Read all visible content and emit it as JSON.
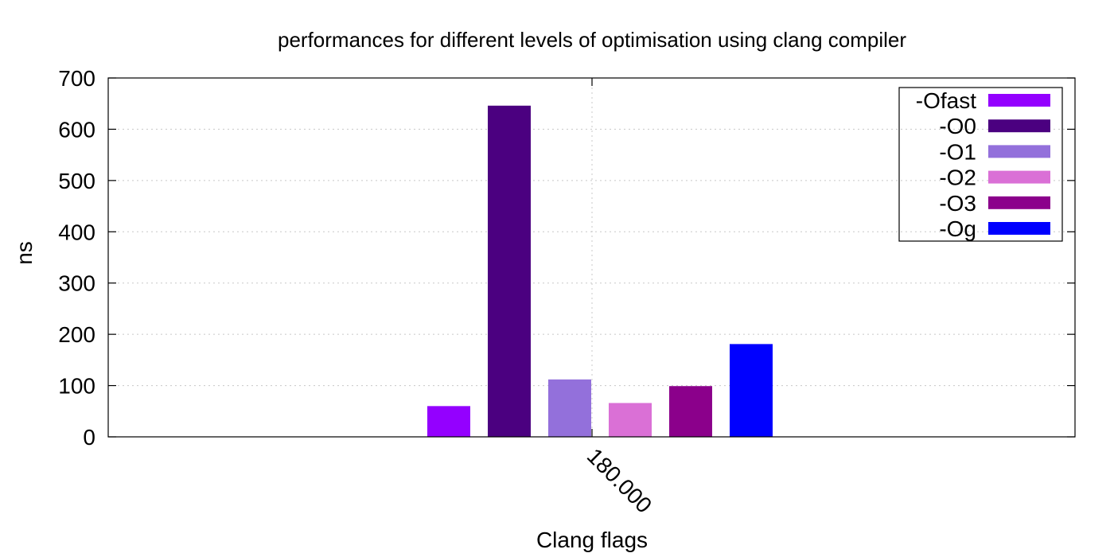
{
  "chart_data": {
    "type": "bar",
    "title": "performances for different levels of optimisation using clang compiler",
    "xlabel": "Clang flags",
    "ylabel": "ns",
    "categories": [
      "180.000"
    ],
    "ylim": [
      0,
      700
    ],
    "yticks": [
      0,
      100,
      200,
      300,
      400,
      500,
      600,
      700
    ],
    "grid": true,
    "legend_position": "top-right",
    "series": [
      {
        "name": "-Ofast",
        "values": [
          60
        ],
        "color": "#9400ff"
      },
      {
        "name": "-O0",
        "values": [
          646
        ],
        "color": "#4b0080"
      },
      {
        "name": "-O1",
        "values": [
          112
        ],
        "color": "#9370db"
      },
      {
        "name": "-O2",
        "values": [
          66
        ],
        "color": "#da70d6"
      },
      {
        "name": "-O3",
        "values": [
          99
        ],
        "color": "#8b008b"
      },
      {
        "name": "-Og",
        "values": [
          181
        ],
        "color": "#0000ff"
      }
    ]
  }
}
